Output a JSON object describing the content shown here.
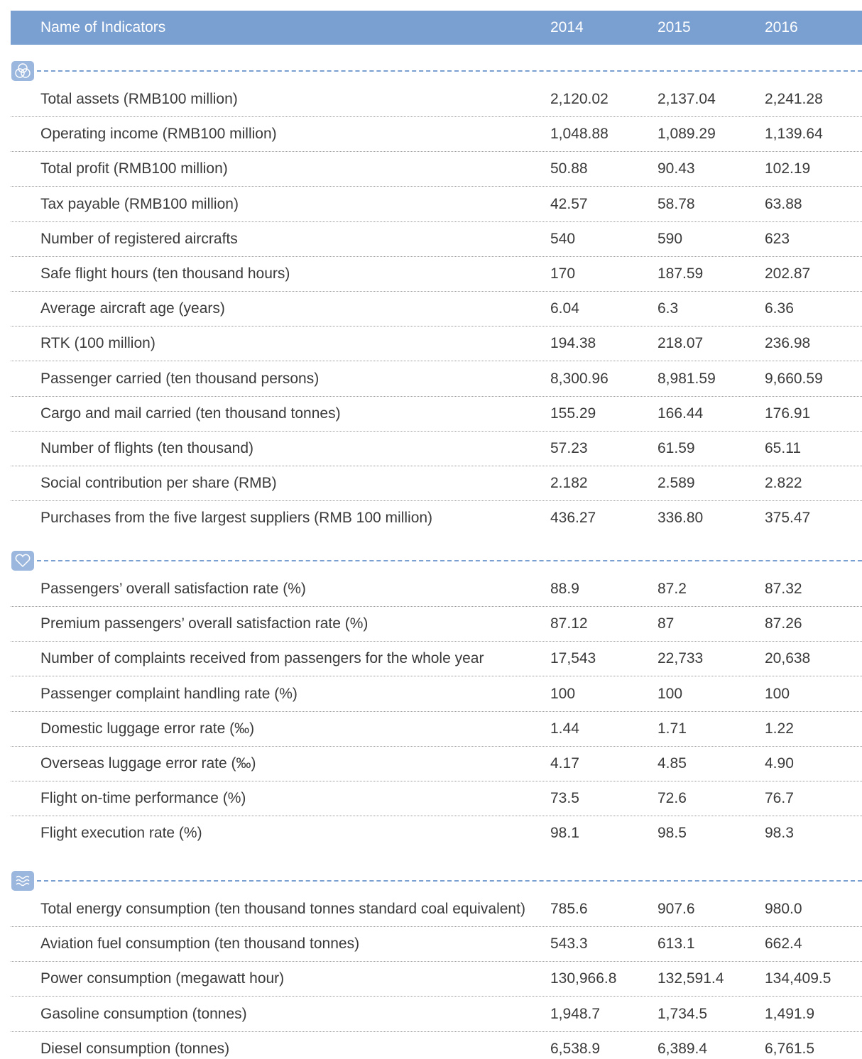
{
  "header": {
    "columns": [
      "Name of Indicators",
      "2014",
      "2015",
      "2016"
    ]
  },
  "sections": [
    {
      "rows": [
        [
          "Total assets (RMB100 million)",
          "2,120.02",
          "2,137.04",
          "2,241.28"
        ],
        [
          "Operating income (RMB100 million)",
          "1,048.88",
          "1,089.29",
          "1,139.64"
        ],
        [
          "Total profit (RMB100 million)",
          "50.88",
          "90.43",
          "102.19"
        ],
        [
          "Tax payable (RMB100 million)",
          "42.57",
          "58.78",
          "63.88"
        ],
        [
          "Number of registered aircrafts",
          "540",
          "590",
          "623"
        ],
        [
          "Safe flight hours (ten thousand hours)",
          "170",
          "187.59",
          "202.87"
        ],
        [
          "Average aircraft age (years)",
          "6.04",
          "6.3",
          "6.36"
        ],
        [
          "RTK (100 million)",
          "194.38",
          "218.07",
          "236.98"
        ],
        [
          "Passenger carried (ten thousand persons)",
          "8,300.96",
          "8,981.59",
          "9,660.59"
        ],
        [
          "Cargo and mail carried (ten thousand tonnes)",
          "155.29",
          "166.44",
          "176.91"
        ],
        [
          "Number of flights (ten thousand)",
          "57.23",
          "61.59",
          "65.11"
        ],
        [
          "Social contribution per share (RMB)",
          "2.182",
          "2.589",
          "2.822"
        ],
        [
          "Purchases from the five largest suppliers (RMB 100 million)",
          "436.27",
          "336.80",
          "375.47"
        ]
      ]
    },
    {
      "rows": [
        [
          "Passengers’ overall satisfaction rate (%)",
          "88.9",
          "87.2",
          "87.32"
        ],
        [
          "Premium passengers’ overall satisfaction rate (%)",
          "87.12",
          "87",
          "87.26"
        ],
        [
          "Number of complaints received from passengers for the whole year",
          "17,543",
          "22,733",
          "20,638"
        ],
        [
          "Passenger complaint handling rate (%)",
          "100",
          "100",
          "100"
        ],
        [
          "Domestic luggage error rate (‰)",
          "1.44",
          "1.71",
          "1.22"
        ],
        [
          "Overseas luggage error rate (‰)",
          "4.17",
          "4.85",
          "4.90"
        ],
        [
          "Flight on-time performance (%)",
          "73.5",
          "72.6",
          "76.7"
        ],
        [
          "Flight execution rate (%)",
          "98.1",
          "98.5",
          "98.3"
        ]
      ]
    },
    {
      "rows": [
        [
          "Total energy consumption (ten thousand tonnes standard coal equivalent)",
          "785.6",
          "907.6",
          "980.0"
        ],
        [
          "Aviation fuel consumption (ten thousand tonnes)",
          "543.3",
          "613.1",
          "662.4"
        ],
        [
          "Power consumption (megawatt hour)",
          "130,966.8",
          "132,591.4",
          "134,409.5"
        ],
        [
          "Gasoline consumption (tonnes)",
          "1,948.7",
          "1,734.5",
          "1,491.9"
        ],
        [
          "Diesel consumption (tonnes)",
          "6,538.9",
          "6,389.4",
          "6,761.5"
        ]
      ]
    }
  ]
}
